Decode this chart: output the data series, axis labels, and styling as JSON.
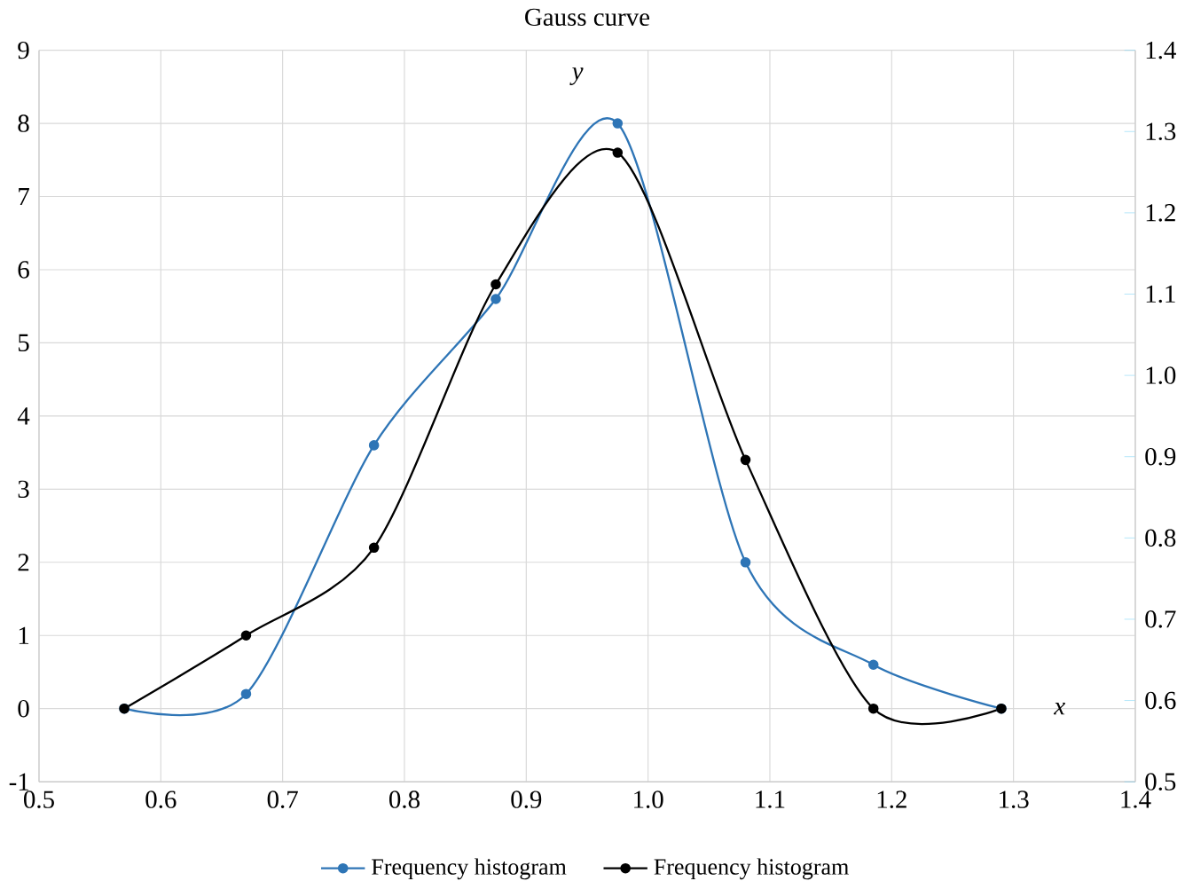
{
  "chart_data": {
    "type": "line",
    "title": "Gauss curve",
    "xlabel": "x",
    "ylabel": "y",
    "xlim": [
      0.5,
      1.4
    ],
    "xticks": [
      0.5,
      0.6,
      0.7,
      0.8,
      0.9,
      {
        "value": 1.0,
        "label": "1.0"
      },
      1.1,
      1.2,
      1.3,
      1.4
    ],
    "ylim": [
      -1,
      9
    ],
    "yticks": [
      -1,
      0,
      1,
      2,
      3,
      4,
      5,
      6,
      7,
      8,
      9
    ],
    "y2lim": [
      0.5,
      1.4
    ],
    "y2ticks": [
      0.5,
      0.6,
      0.7,
      0.8,
      0.9,
      {
        "value": 1.0,
        "label": "1.0"
      },
      1.1,
      1.2,
      1.3,
      1.4
    ],
    "grid": true,
    "legend": "bottom",
    "marker": "circle",
    "line_style": "solid",
    "series": [
      {
        "name": "Frequency histogram",
        "color": "#2e75b6",
        "x": [
          0.57,
          0.67,
          0.775,
          0.875,
          0.975,
          1.08,
          1.185,
          1.29
        ],
        "values": [
          0,
          0.2,
          3.6,
          5.6,
          8.0,
          2.0,
          0.6,
          0
        ]
      },
      {
        "name": "Frequency histogram",
        "color": "#000000",
        "x": [
          0.57,
          0.67,
          0.775,
          0.875,
          0.975,
          1.08,
          1.185,
          1.29
        ],
        "values": [
          0,
          1.0,
          2.2,
          5.8,
          7.6,
          3.4,
          0,
          0
        ]
      }
    ]
  }
}
